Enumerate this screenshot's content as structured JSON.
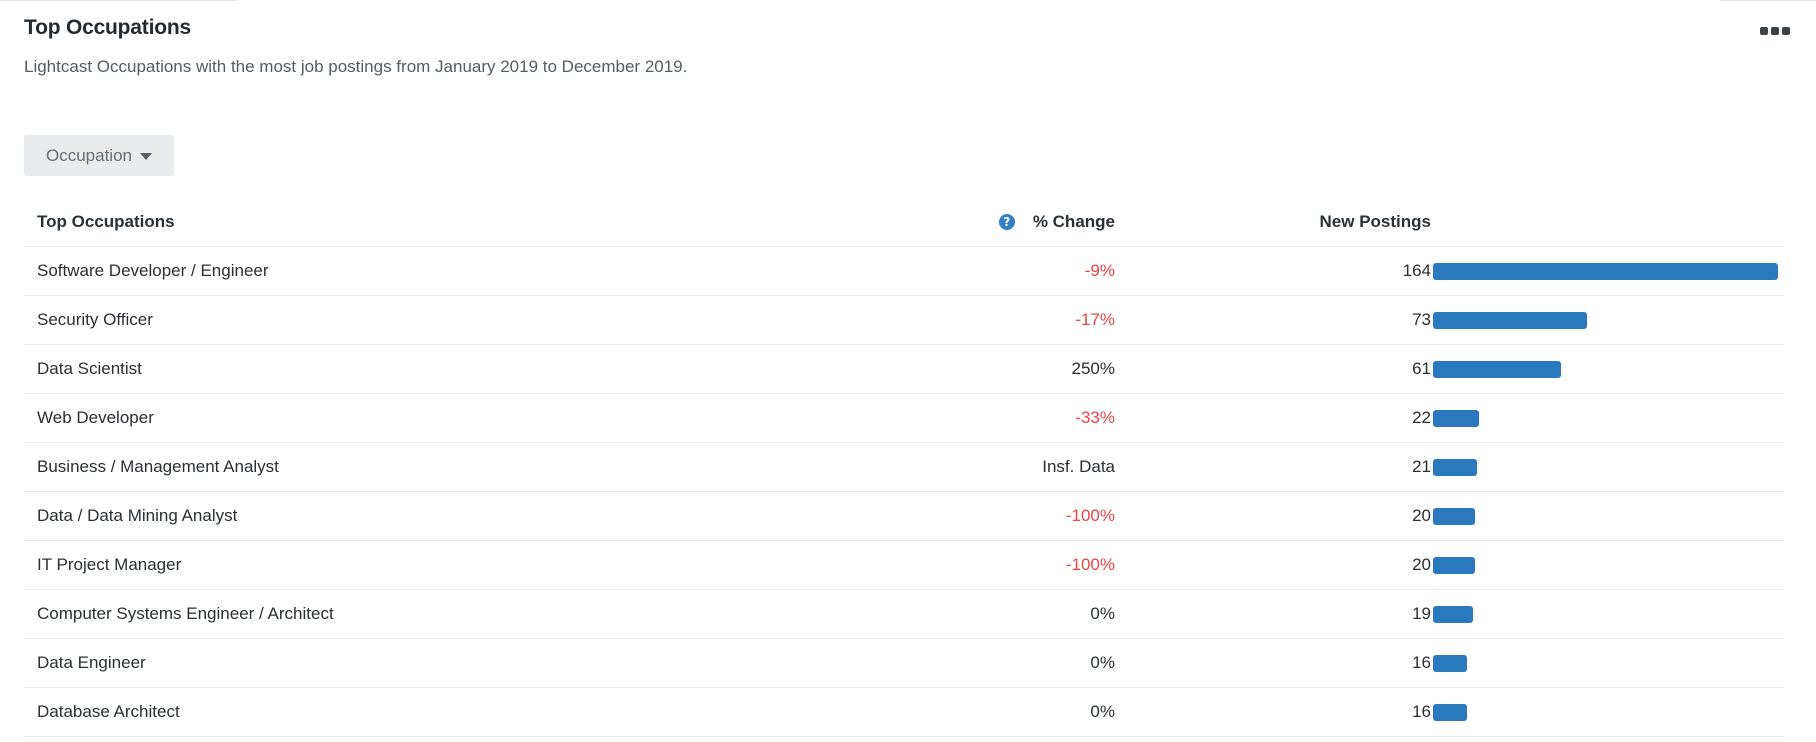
{
  "card": {
    "title": "Top Occupations",
    "subtitle": "Lightcast Occupations with the most job postings from January 2019 to December 2019.",
    "more_icon": "more-horizontal-icon"
  },
  "filter": {
    "label": "Occupation",
    "icon": "caret-down-icon"
  },
  "table": {
    "headers": {
      "occupation": "Top Occupations",
      "change": "% Change",
      "postings": "New Postings",
      "help_icon": "?"
    },
    "max_postings": 164,
    "bar_color": "#2a78be",
    "negative_color": "#ee4545",
    "rows": [
      {
        "name": "Software Developer / Engineer",
        "change": "-9%",
        "negative": true,
        "postings": "164",
        "value": 164
      },
      {
        "name": "Security Officer",
        "change": "-17%",
        "negative": true,
        "postings": "73",
        "value": 73
      },
      {
        "name": "Data Scientist",
        "change": "250%",
        "negative": false,
        "postings": "61",
        "value": 61
      },
      {
        "name": "Web Developer",
        "change": "-33%",
        "negative": true,
        "postings": "22",
        "value": 22
      },
      {
        "name": "Business / Management Analyst",
        "change": "Insf. Data",
        "negative": false,
        "postings": "21",
        "value": 21
      },
      {
        "name": "Data / Data Mining Analyst",
        "change": "-100%",
        "negative": true,
        "postings": "20",
        "value": 20
      },
      {
        "name": "IT Project Manager",
        "change": "-100%",
        "negative": true,
        "postings": "20",
        "value": 20
      },
      {
        "name": "Computer Systems Engineer / Architect",
        "change": "0%",
        "negative": false,
        "postings": "19",
        "value": 19
      },
      {
        "name": "Data Engineer",
        "change": "0%",
        "negative": false,
        "postings": "16",
        "value": 16
      },
      {
        "name": "Database Architect",
        "change": "0%",
        "negative": false,
        "postings": "16",
        "value": 16
      }
    ]
  }
}
